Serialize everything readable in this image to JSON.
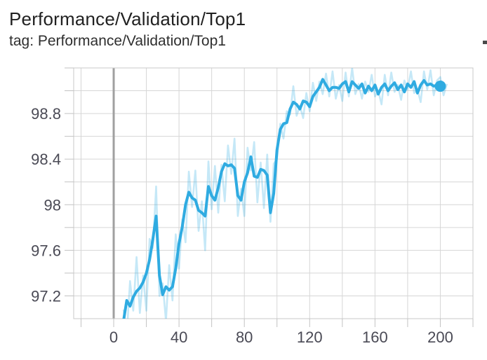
{
  "header": {
    "title": "Performance/Validation/Top1",
    "tag_line": "tag: Performance/Validation/Top1"
  },
  "chart_data": {
    "type": "line",
    "title": "Performance/Validation/Top1",
    "tag": "Performance/Validation/Top1",
    "xlabel": "",
    "ylabel": "",
    "grid": "on",
    "legend": "none",
    "x_range": [
      -24.5,
      220
    ],
    "y_range": [
      97.0,
      99.2
    ],
    "x_grid_ticks": [
      -20,
      0,
      20,
      40,
      60,
      80,
      100,
      120,
      140,
      160,
      180,
      200,
      220
    ],
    "y_grid_ticks": [
      97.2,
      97.4,
      97.6,
      97.8,
      98.0,
      98.2,
      98.4,
      98.6,
      98.8,
      99.0,
      99.2
    ],
    "x_tick_labels": [
      {
        "value": 0,
        "label": "0"
      },
      {
        "value": 40,
        "label": "40"
      },
      {
        "value": 80,
        "label": "80"
      },
      {
        "value": 120,
        "label": "120"
      },
      {
        "value": 160,
        "label": "160"
      },
      {
        "value": 200,
        "label": "200"
      }
    ],
    "y_tick_labels": [
      {
        "value": 97.2,
        "label": "97.2"
      },
      {
        "value": 97.6,
        "label": "97.6"
      },
      {
        "value": 98.0,
        "label": "98"
      },
      {
        "value": 98.4,
        "label": "98.4"
      },
      {
        "value": 98.8,
        "label": "98.8"
      }
    ],
    "zero_line_x": 0,
    "colors": {
      "smoothed": "#2fabe1",
      "raw": "#2fabe1",
      "raw_opacity": 0.28,
      "grid": "#d6d6d6",
      "axis_border": "#c9c9c9",
      "tick_mark": "#c2c2c2",
      "zero_line": "#a0a0a0",
      "tick_label": "#4a4a55",
      "title": "#212121"
    },
    "series": [
      {
        "name": "raw",
        "style": "light",
        "points": [
          [
            6,
            97.08
          ],
          [
            8,
            96.86
          ],
          [
            10,
            97.33
          ],
          [
            12,
            97.07
          ],
          [
            14,
            97.54
          ],
          [
            16,
            97.05
          ],
          [
            18,
            97.38
          ],
          [
            20,
            97.07
          ],
          [
            22,
            97.7
          ],
          [
            24,
            97.62
          ],
          [
            26,
            98.16
          ],
          [
            28,
            97.2
          ],
          [
            30,
            97.31
          ],
          [
            32,
            96.98
          ],
          [
            34,
            97.47
          ],
          [
            36,
            97.16
          ],
          [
            38,
            97.74
          ],
          [
            40,
            97.44
          ],
          [
            42,
            97.87
          ],
          [
            44,
            97.67
          ],
          [
            46,
            98.29
          ],
          [
            48,
            97.98
          ],
          [
            50,
            98.3
          ],
          [
            52,
            97.77
          ],
          [
            54,
            98.03
          ],
          [
            56,
            97.6
          ],
          [
            58,
            98.38
          ],
          [
            60,
            97.96
          ],
          [
            62,
            98.34
          ],
          [
            64,
            97.93
          ],
          [
            66,
            98.35
          ],
          [
            68,
            98.03
          ],
          [
            70,
            98.52
          ],
          [
            72,
            98.27
          ],
          [
            74,
            98.58
          ],
          [
            76,
            97.9
          ],
          [
            78,
            98.14
          ],
          [
            80,
            97.9
          ],
          [
            82,
            98.5
          ],
          [
            84,
            98.3
          ],
          [
            86,
            98.55
          ],
          [
            88,
            98.02
          ],
          [
            90,
            98.37
          ],
          [
            92,
            97.97
          ],
          [
            94,
            98.44
          ],
          [
            96,
            97.85
          ],
          [
            98,
            98.36
          ],
          [
            100,
            98.4
          ],
          [
            102,
            98.71
          ],
          [
            104,
            98.58
          ],
          [
            106,
            98.82
          ],
          [
            108,
            98.79
          ],
          [
            110,
            99.04
          ],
          [
            112,
            98.78
          ],
          [
            114,
            98.87
          ],
          [
            116,
            98.76
          ],
          [
            118,
            98.98
          ],
          [
            120,
            98.82
          ],
          [
            122,
            99.07
          ],
          [
            124,
            98.91
          ],
          [
            126,
            99.08
          ],
          [
            128,
            98.97
          ],
          [
            130,
            99.15
          ],
          [
            132,
            98.95
          ],
          [
            134,
            99.17
          ],
          [
            136,
            98.93
          ],
          [
            138,
            99.05
          ],
          [
            140,
            98.91
          ],
          [
            142,
            99.16
          ],
          [
            144,
            98.95
          ],
          [
            146,
            99.2
          ],
          [
            148,
            98.97
          ],
          [
            150,
            99.06
          ],
          [
            152,
            98.93
          ],
          [
            154,
            99.08
          ],
          [
            156,
            98.99
          ],
          [
            158,
            99.14
          ],
          [
            160,
            98.95
          ],
          [
            162,
            99.0
          ],
          [
            164,
            98.88
          ],
          [
            166,
            99.14
          ],
          [
            168,
            98.96
          ],
          [
            170,
            99.16
          ],
          [
            172,
            98.99
          ],
          [
            174,
            99.05
          ],
          [
            176,
            98.92
          ],
          [
            178,
            99.09
          ],
          [
            180,
            99.01
          ],
          [
            182,
            99.17
          ],
          [
            184,
            98.98
          ],
          [
            186,
            99.01
          ],
          [
            188,
            98.9
          ],
          [
            190,
            99.17
          ],
          [
            192,
            99.01
          ],
          [
            194,
            99.18
          ],
          [
            196,
            98.96
          ],
          [
            198,
            99.09
          ],
          [
            200,
            99.12
          ],
          [
            202,
            98.96
          ],
          [
            204,
            99.06
          ]
        ]
      },
      {
        "name": "smoothed",
        "style": "bold",
        "points": [
          [
            6,
            96.98
          ],
          [
            8,
            97.16
          ],
          [
            10,
            97.11
          ],
          [
            12,
            97.19
          ],
          [
            14,
            97.24
          ],
          [
            16,
            97.27
          ],
          [
            18,
            97.32
          ],
          [
            20,
            97.4
          ],
          [
            22,
            97.52
          ],
          [
            24,
            97.7
          ],
          [
            26,
            97.9
          ],
          [
            28,
            97.38
          ],
          [
            30,
            97.21
          ],
          [
            32,
            97.28
          ],
          [
            34,
            97.25
          ],
          [
            36,
            97.28
          ],
          [
            38,
            97.44
          ],
          [
            40,
            97.66
          ],
          [
            42,
            97.81
          ],
          [
            44,
            98.0
          ],
          [
            46,
            98.11
          ],
          [
            48,
            98.06
          ],
          [
            50,
            98.04
          ],
          [
            52,
            97.95
          ],
          [
            54,
            97.93
          ],
          [
            56,
            97.9
          ],
          [
            58,
            98.16
          ],
          [
            60,
            98.08
          ],
          [
            62,
            98.04
          ],
          [
            64,
            98.15
          ],
          [
            66,
            98.29
          ],
          [
            68,
            98.36
          ],
          [
            70,
            98.34
          ],
          [
            72,
            98.35
          ],
          [
            74,
            98.32
          ],
          [
            76,
            98.08
          ],
          [
            78,
            98.04
          ],
          [
            80,
            98.2
          ],
          [
            82,
            98.28
          ],
          [
            84,
            98.42
          ],
          [
            86,
            98.25
          ],
          [
            88,
            98.24
          ],
          [
            90,
            98.31
          ],
          [
            92,
            98.3
          ],
          [
            94,
            98.26
          ],
          [
            96,
            97.93
          ],
          [
            98,
            98.1
          ],
          [
            100,
            98.48
          ],
          [
            102,
            98.66
          ],
          [
            104,
            98.71
          ],
          [
            106,
            98.72
          ],
          [
            108,
            98.84
          ],
          [
            110,
            98.9
          ],
          [
            112,
            98.88
          ],
          [
            114,
            98.84
          ],
          [
            116,
            98.91
          ],
          [
            118,
            98.9
          ],
          [
            120,
            98.86
          ],
          [
            122,
            98.95
          ],
          [
            124,
            98.99
          ],
          [
            126,
            99.03
          ],
          [
            128,
            99.1
          ],
          [
            130,
            99.05
          ],
          [
            132,
            99.0
          ],
          [
            134,
            99.03
          ],
          [
            136,
            99.03
          ],
          [
            138,
            99.02
          ],
          [
            140,
            99.06
          ],
          [
            142,
            99.08
          ],
          [
            144,
            98.99
          ],
          [
            146,
            99.08
          ],
          [
            148,
            99.05
          ],
          [
            150,
            99.02
          ],
          [
            152,
            99.06
          ],
          [
            154,
            98.98
          ],
          [
            156,
            99.04
          ],
          [
            158,
            99.0
          ],
          [
            160,
            99.05
          ],
          [
            162,
            98.97
          ],
          [
            164,
            99.03
          ],
          [
            166,
            99.06
          ],
          [
            168,
            99.0
          ],
          [
            170,
            99.04
          ],
          [
            172,
            99.07
          ],
          [
            174,
            99.01
          ],
          [
            176,
            99.05
          ],
          [
            178,
            98.99
          ],
          [
            180,
            99.06
          ],
          [
            182,
            99.03
          ],
          [
            184,
            99.08
          ],
          [
            186,
            98.98
          ],
          [
            188,
            99.05
          ],
          [
            190,
            99.09
          ],
          [
            192,
            99.05
          ],
          [
            194,
            99.06
          ],
          [
            196,
            99.04
          ],
          [
            198,
            99.05
          ],
          [
            200,
            99.04
          ]
        ],
        "end_marker": [
          200,
          99.04
        ]
      }
    ]
  }
}
